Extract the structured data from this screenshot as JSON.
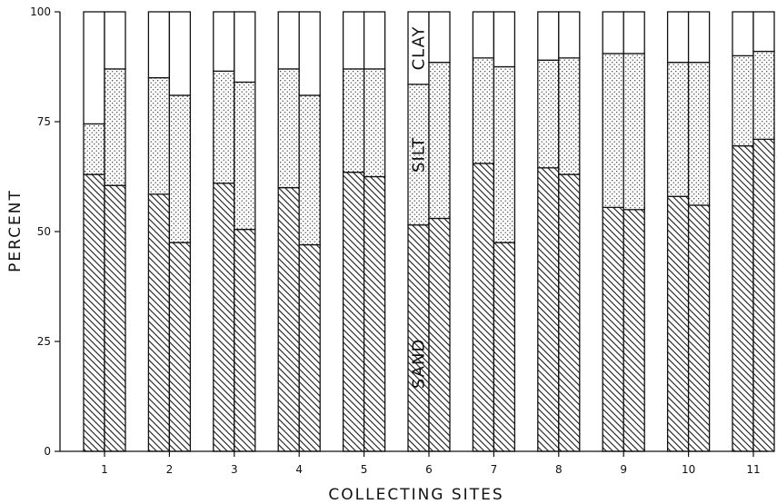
{
  "chart_data": {
    "type": "bar",
    "stacked": true,
    "xlabel": "COLLECTING SITES",
    "ylabel": "PERCENT",
    "ylim": [
      0,
      100
    ],
    "yticks": [
      0,
      25,
      50,
      75,
      100
    ],
    "categories": [
      "1",
      "2",
      "3",
      "4",
      "5",
      "6",
      "7",
      "8",
      "9",
      "10",
      "11"
    ],
    "bars_per_category": 2,
    "layer_labels": [
      "SAND",
      "SILT",
      "CLAY"
    ],
    "layers": [
      {
        "name": "SAND",
        "pattern": "diagonal-hatch"
      },
      {
        "name": "SILT",
        "pattern": "stipple"
      },
      {
        "name": "CLAY",
        "pattern": "blank"
      }
    ],
    "sites": [
      {
        "site": "1",
        "bars": [
          {
            "sand": 63,
            "silt": 11.5,
            "clay": 25.5
          },
          {
            "sand": 60.5,
            "silt": 26.5,
            "clay": 13
          }
        ]
      },
      {
        "site": "2",
        "bars": [
          {
            "sand": 58.5,
            "silt": 26.5,
            "clay": 15
          },
          {
            "sand": 47.5,
            "silt": 33.5,
            "clay": 19
          }
        ]
      },
      {
        "site": "3",
        "bars": [
          {
            "sand": 61,
            "silt": 25.5,
            "clay": 13.5
          },
          {
            "sand": 50.5,
            "silt": 33.5,
            "clay": 16
          }
        ]
      },
      {
        "site": "4",
        "bars": [
          {
            "sand": 60,
            "silt": 27,
            "clay": 13
          },
          {
            "sand": 47,
            "silt": 34,
            "clay": 19
          }
        ]
      },
      {
        "site": "5",
        "bars": [
          {
            "sand": 63.5,
            "silt": 23.5,
            "clay": 13
          },
          {
            "sand": 62.5,
            "silt": 24.5,
            "clay": 13
          }
        ]
      },
      {
        "site": "6",
        "bars": [
          {
            "sand": 51.5,
            "silt": 32,
            "clay": 16.5
          },
          {
            "sand": 53,
            "silt": 35.5,
            "clay": 11.5
          }
        ]
      },
      {
        "site": "7",
        "bars": [
          {
            "sand": 65.5,
            "silt": 24,
            "clay": 10.5
          },
          {
            "sand": 47.5,
            "silt": 40,
            "clay": 12.5
          }
        ]
      },
      {
        "site": "8",
        "bars": [
          {
            "sand": 64.5,
            "silt": 24.5,
            "clay": 11
          },
          {
            "sand": 63,
            "silt": 26.5,
            "clay": 10.5
          }
        ]
      },
      {
        "site": "9",
        "bars": [
          {
            "sand": 55.5,
            "silt": 35,
            "clay": 9.5
          },
          {
            "sand": 55,
            "silt": 35.5,
            "clay": 9.5
          }
        ]
      },
      {
        "site": "10",
        "bars": [
          {
            "sand": 58,
            "silt": 30.5,
            "clay": 11.5
          },
          {
            "sand": 56,
            "silt": 32.5,
            "clay": 11.5
          }
        ]
      },
      {
        "site": "11",
        "bars": [
          {
            "sand": 69.5,
            "silt": 20.5,
            "clay": 10
          },
          {
            "sand": 71,
            "silt": 20,
            "clay": 9
          }
        ]
      }
    ]
  }
}
